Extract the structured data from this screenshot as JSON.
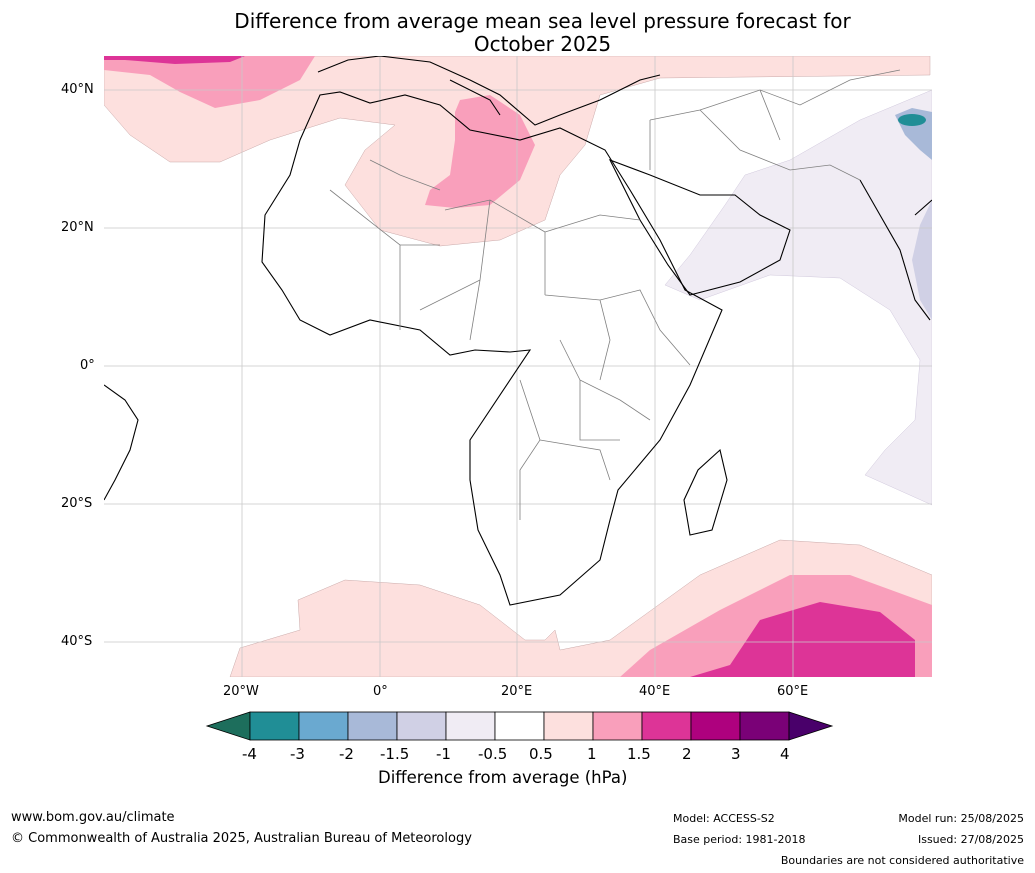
{
  "chart_data": {
    "type": "heatmap",
    "title_line1": "Difference from average mean sea level pressure forecast for",
    "title_line2": "October 2025",
    "lat_ticks": [
      "40°N",
      "20°N",
      "0°",
      "20°S",
      "40°S"
    ],
    "lon_ticks": [
      "20°W",
      "0°",
      "20°E",
      "40°E",
      "60°E"
    ],
    "colorbar": {
      "label": "Difference from average (hPa)",
      "ticks": [
        "-4",
        "-3",
        "-2",
        "-1.5",
        "-1",
        "-0.5",
        "0.5",
        "1",
        "1.5",
        "2",
        "3",
        "4"
      ],
      "levels": [
        -4,
        -3,
        -2,
        -1.5,
        -1,
        -0.5,
        0.5,
        1,
        1.5,
        2,
        3,
        4
      ],
      "colors": [
        "#1d6e5c",
        "#208e96",
        "#6aa9d0",
        "#a8b9d8",
        "#d0d0e5",
        "#f0ecf4",
        "#ffffff",
        "#fde0de",
        "#f99fbb",
        "#dd3497",
        "#ae017e",
        "#7a0177",
        "#49006a"
      ]
    },
    "grid": true
  },
  "footer": {
    "site": "www.bom.gov.au/climate",
    "copyright": "© Commonwealth of Australia 2025, Australian Bureau of Meteorology",
    "model": "Model: ACCESS-S2",
    "base_period": "Base period: 1981-2018",
    "model_run": "Model run: 25/08/2025",
    "issued": "Issued: 27/08/2025",
    "disclaimer": "Boundaries are not considered authoritative"
  }
}
